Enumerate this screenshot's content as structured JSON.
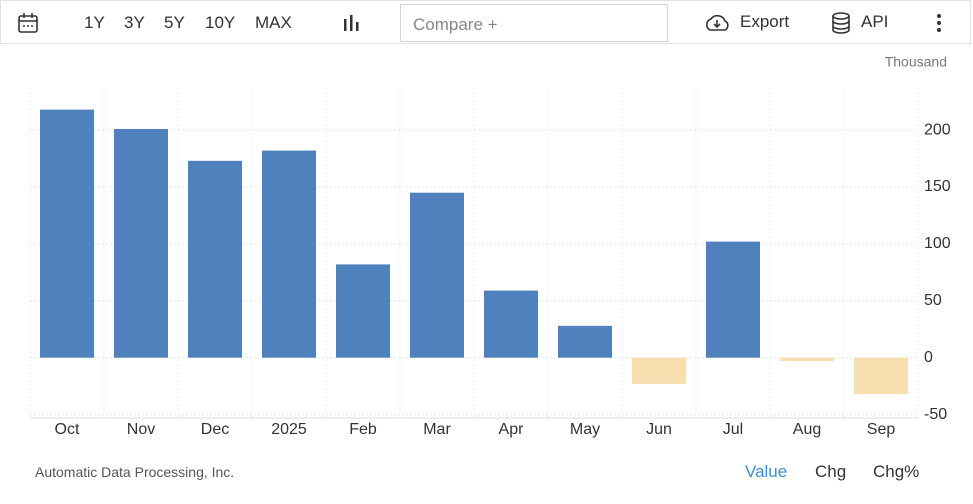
{
  "toolbar": {
    "ranges": [
      "1Y",
      "3Y",
      "5Y",
      "10Y",
      "MAX"
    ],
    "compare": "Compare +",
    "export": "Export",
    "api": "API"
  },
  "chart_data": {
    "type": "bar",
    "unit": "Thousand",
    "categories": [
      "Oct",
      "Nov",
      "Dec",
      "2025",
      "Feb",
      "Mar",
      "Apr",
      "May",
      "Jun",
      "Jul",
      "Aug",
      "Sep"
    ],
    "values": [
      218,
      201,
      173,
      182,
      82,
      145,
      59,
      28,
      -23,
      102,
      -3,
      -32
    ],
    "color": "#4f81bd",
    "negative_color": "#f7dfb0",
    "ylim": [
      -53,
      237
    ],
    "yticks": [
      -50,
      0,
      50,
      100,
      150,
      200
    ],
    "grid": true
  },
  "footer": {
    "source": "Automatic Data Processing, Inc.",
    "tabs": [
      "Value",
      "Chg",
      "Chg%"
    ]
  }
}
